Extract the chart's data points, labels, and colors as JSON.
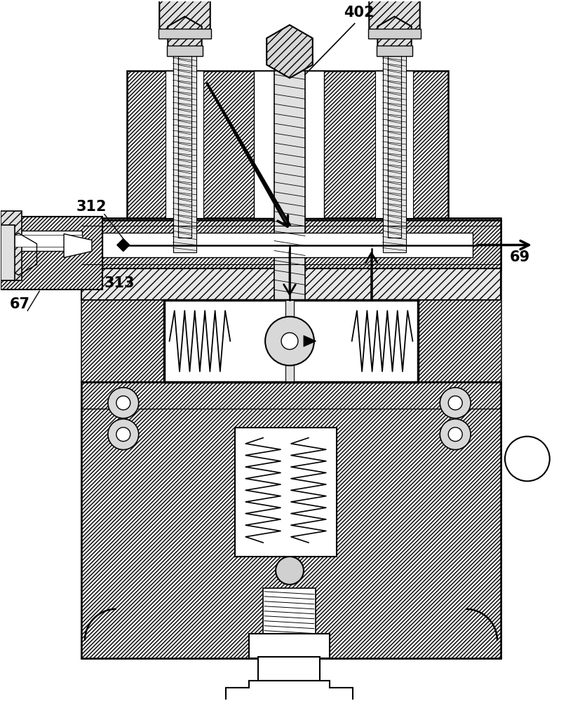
{
  "background_color": "#ffffff",
  "label_402": "402",
  "label_312": "312",
  "label_313": "313",
  "label_67": "67",
  "label_69": "69",
  "figsize": [
    8.27,
    10.0
  ],
  "dpi": 100,
  "hatch_dense": "///////////",
  "hatch_medium": "//////",
  "hatch_light": "///",
  "black": "#000000",
  "white": "#ffffff",
  "light_gray": "#e8e8e8",
  "mid_gray": "#d0d0d0"
}
